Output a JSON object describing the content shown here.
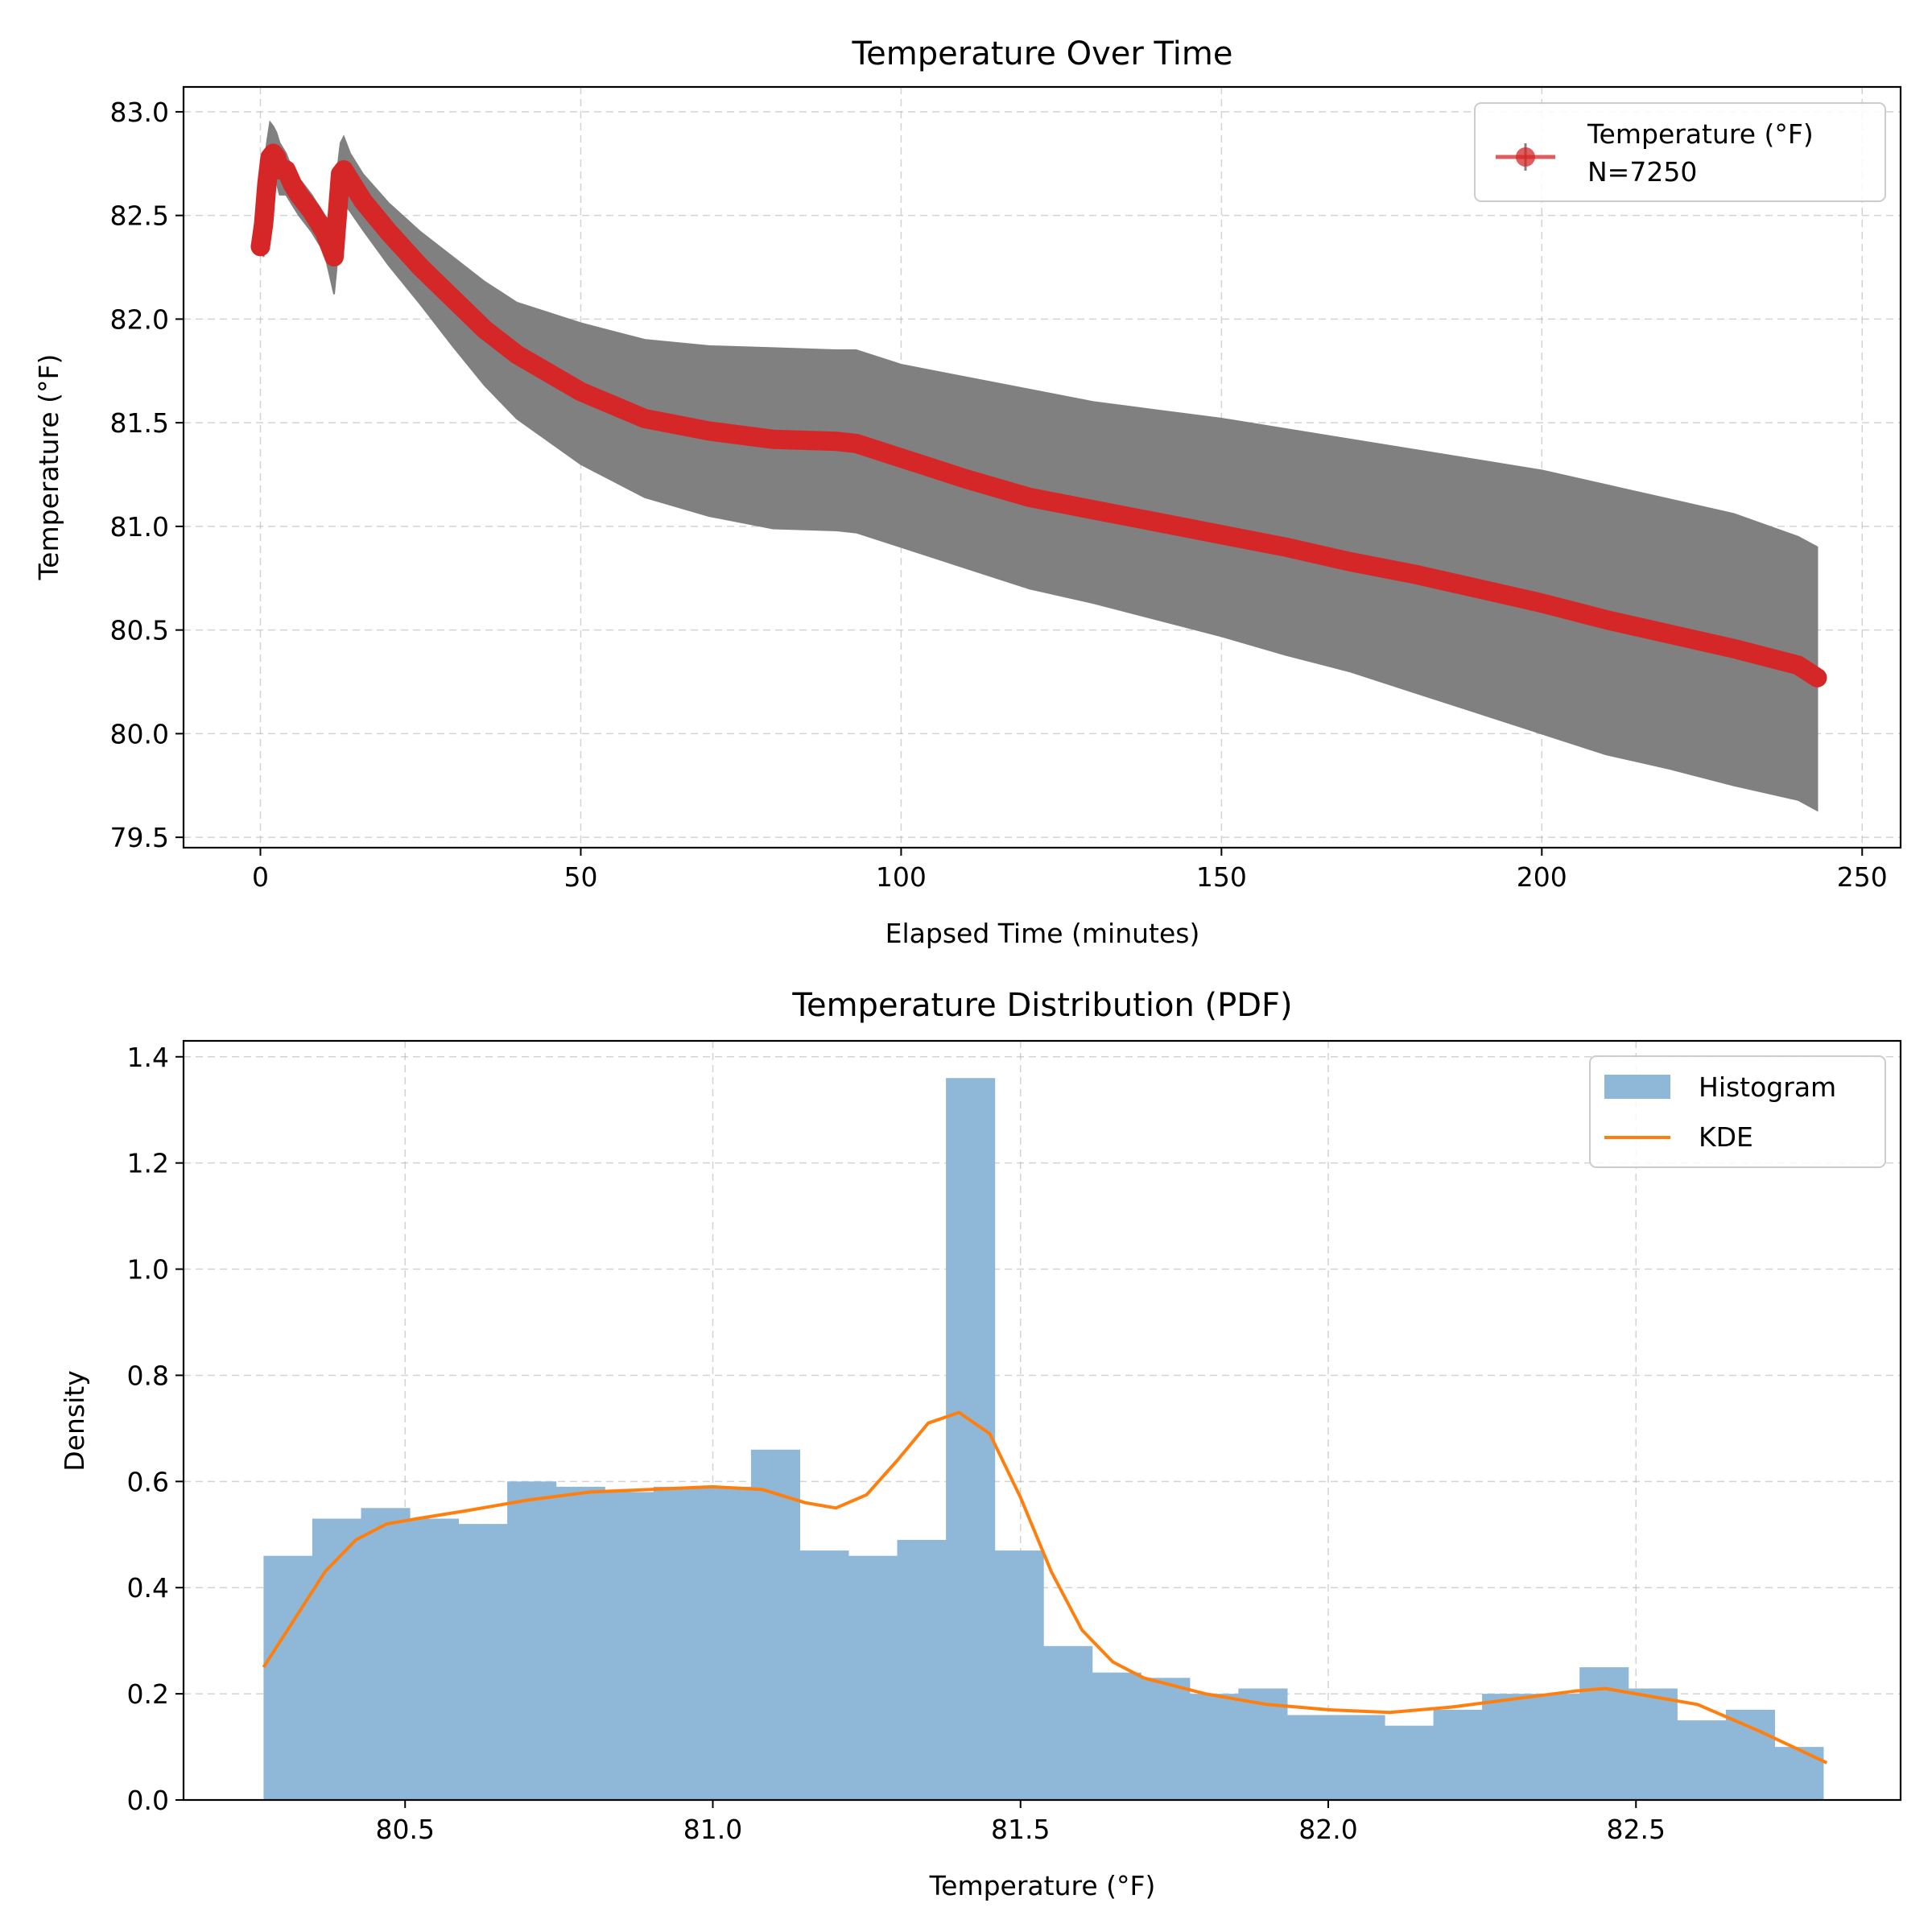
{
  "chart_data": [
    {
      "type": "line",
      "title": "Temperature Over Time",
      "xlabel": "Elapsed Time (minutes)",
      "ylabel": "Temperature (°F)",
      "xlim": [
        -12,
        256
      ],
      "ylim": [
        79.45,
        83.12
      ],
      "xticks": [
        0,
        50,
        100,
        150,
        200,
        250
      ],
      "yticks": [
        79.5,
        80.0,
        80.5,
        81.0,
        81.5,
        82.0,
        82.5,
        83.0
      ],
      "grid": true,
      "legend_position": "top-right",
      "series": [
        {
          "name": "Temperature (°F)",
          "annotation": "N=7250",
          "color": "#d62728",
          "error_color": "#808080",
          "x": [
            0,
            0.5,
            1,
            1.5,
            2,
            2.5,
            3,
            4,
            5,
            6,
            8,
            10,
            11.5,
            12,
            12.5,
            13,
            14,
            16,
            20,
            25,
            30,
            35,
            40,
            50,
            60,
            70,
            80,
            90,
            93,
            100,
            110,
            120,
            130,
            140,
            150,
            160,
            170,
            180,
            190,
            200,
            210,
            220,
            230,
            240,
            243
          ],
          "y": [
            82.35,
            82.46,
            82.65,
            82.78,
            82.8,
            82.78,
            82.72,
            82.72,
            82.65,
            82.6,
            82.52,
            82.42,
            82.3,
            82.5,
            82.7,
            82.72,
            82.67,
            82.57,
            82.42,
            82.25,
            82.1,
            81.95,
            81.83,
            81.65,
            81.52,
            81.46,
            81.42,
            81.41,
            81.4,
            81.33,
            81.23,
            81.14,
            81.08,
            81.02,
            80.96,
            80.9,
            80.83,
            80.77,
            80.7,
            80.63,
            80.55,
            80.48,
            80.41,
            80.33,
            80.27
          ],
          "upper": [
            82.35,
            82.7,
            82.85,
            82.95,
            82.93,
            82.9,
            82.85,
            82.8,
            82.72,
            82.68,
            82.6,
            82.5,
            82.45,
            82.72,
            82.85,
            82.88,
            82.8,
            82.7,
            82.56,
            82.42,
            82.3,
            82.18,
            82.08,
            81.98,
            81.9,
            81.87,
            81.86,
            81.85,
            81.85,
            81.78,
            81.72,
            81.66,
            81.6,
            81.56,
            81.52,
            81.47,
            81.42,
            81.37,
            81.32,
            81.27,
            81.2,
            81.13,
            81.06,
            80.95,
            80.9
          ],
          "lower": [
            82.35,
            82.3,
            82.5,
            82.62,
            82.66,
            82.66,
            82.6,
            82.6,
            82.55,
            82.5,
            82.42,
            82.32,
            82.12,
            82.28,
            82.55,
            82.56,
            82.52,
            82.43,
            82.26,
            82.07,
            81.87,
            81.68,
            81.52,
            81.3,
            81.14,
            81.05,
            80.99,
            80.98,
            80.97,
            80.9,
            80.8,
            80.7,
            80.63,
            80.55,
            80.47,
            80.38,
            80.3,
            80.2,
            80.1,
            80.0,
            79.9,
            79.83,
            79.75,
            79.68,
            79.63
          ]
        }
      ]
    },
    {
      "type": "bar",
      "title": "Temperature Distribution (PDF)",
      "xlabel": "Temperature (°F)",
      "ylabel": "Density",
      "xlim": [
        80.14,
        82.93
      ],
      "ylim": [
        0,
        1.43
      ],
      "xticks": [
        80.5,
        81.0,
        81.5,
        82.0,
        82.5
      ],
      "yticks": [
        0.0,
        0.2,
        0.4,
        0.6,
        0.8,
        1.0,
        1.2,
        1.4
      ],
      "grid": true,
      "legend_position": "top-right",
      "histogram": {
        "name": "Histogram",
        "color": "#8fb8d8",
        "bin_start": 80.27,
        "bin_width": 0.0792,
        "values": [
          0.46,
          0.53,
          0.55,
          0.53,
          0.52,
          0.6,
          0.59,
          0.58,
          0.59,
          0.59,
          0.66,
          0.47,
          0.46,
          0.49,
          1.36,
          0.47,
          0.29,
          0.24,
          0.23,
          0.2,
          0.21,
          0.16,
          0.16,
          0.14,
          0.17,
          0.2,
          0.2,
          0.25,
          0.21,
          0.15,
          0.17,
          0.1
        ]
      },
      "kde": {
        "name": "KDE",
        "color": "#ff7f0e",
        "x": [
          80.27,
          80.32,
          80.37,
          80.42,
          80.47,
          80.52,
          80.6,
          80.7,
          80.8,
          80.9,
          81.0,
          81.08,
          81.15,
          81.2,
          81.25,
          81.3,
          81.35,
          81.4,
          81.45,
          81.5,
          81.55,
          81.6,
          81.65,
          81.7,
          81.8,
          81.9,
          82.0,
          82.1,
          82.2,
          82.3,
          82.4,
          82.45,
          82.5,
          82.6,
          82.7,
          82.81
        ],
        "y": [
          0.25,
          0.34,
          0.43,
          0.49,
          0.52,
          0.53,
          0.545,
          0.565,
          0.58,
          0.585,
          0.59,
          0.585,
          0.56,
          0.55,
          0.575,
          0.64,
          0.71,
          0.73,
          0.69,
          0.57,
          0.43,
          0.32,
          0.26,
          0.23,
          0.2,
          0.18,
          0.17,
          0.165,
          0.175,
          0.19,
          0.205,
          0.21,
          0.2,
          0.18,
          0.13,
          0.07
        ]
      }
    }
  ]
}
